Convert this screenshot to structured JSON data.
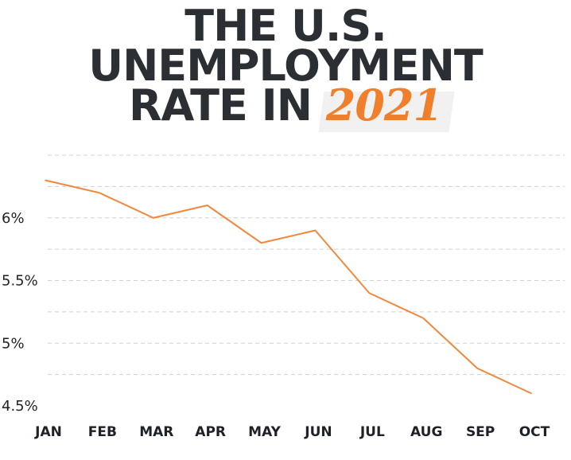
{
  "title": {
    "line1": "THE U.S.",
    "line2": "UNEMPLOYMENT",
    "line3": "RATE IN",
    "year": "2021"
  },
  "chart_data": {
    "type": "line",
    "categories": [
      "JAN",
      "FEB",
      "MAR",
      "APR",
      "MAY",
      "JUN",
      "JUL",
      "AUG",
      "SEP",
      "OCT"
    ],
    "series": [
      {
        "values": [
          6.3,
          6.2,
          6.0,
          6.1,
          5.8,
          5.9,
          5.4,
          5.2,
          4.8,
          4.6
        ]
      }
    ],
    "yticks": [
      {
        "value": 4.5,
        "label": "4.5%"
      },
      {
        "value": 5.0,
        "label": "5%"
      },
      {
        "value": 5.5,
        "label": "5.5%"
      },
      {
        "value": 6.0,
        "label": "6%"
      }
    ],
    "gridlines": [
      4.75,
      5.0,
      5.25,
      5.5,
      5.75,
      6.0,
      6.25,
      6.5
    ],
    "ylim": [
      4.5,
      6.5
    ],
    "xlabel": "",
    "ylabel": "",
    "grid": true,
    "line_color": "#f0883e",
    "grid_color": "#d0d0d0"
  }
}
